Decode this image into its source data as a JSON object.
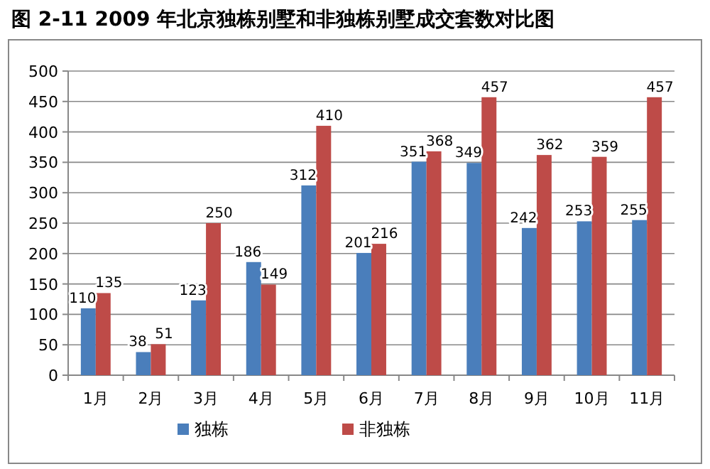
{
  "chart_data": {
    "type": "bar",
    "title": "图 2-11   2009 年北京独栋别墅和非独栋别墅成交套数对比图",
    "categories": [
      "1月",
      "2月",
      "3月",
      "4月",
      "5月",
      "6月",
      "7月",
      "8月",
      "9月",
      "10月",
      "11月"
    ],
    "series": [
      {
        "name": "独栋",
        "color": "#4a7ebb",
        "values": [
          110,
          38,
          123,
          186,
          312,
          201,
          351,
          349,
          242,
          253,
          255
        ]
      },
      {
        "name": "非独栋",
        "color": "#be4b48",
        "values": [
          135,
          51,
          250,
          149,
          410,
          216,
          368,
          457,
          362,
          359,
          457
        ]
      }
    ],
    "ylim": [
      0,
      500
    ],
    "yticks": [
      0,
      50,
      100,
      150,
      200,
      250,
      300,
      350,
      400,
      450,
      500
    ],
    "grid": "y",
    "legend": "bottom",
    "data_labels": true
  }
}
